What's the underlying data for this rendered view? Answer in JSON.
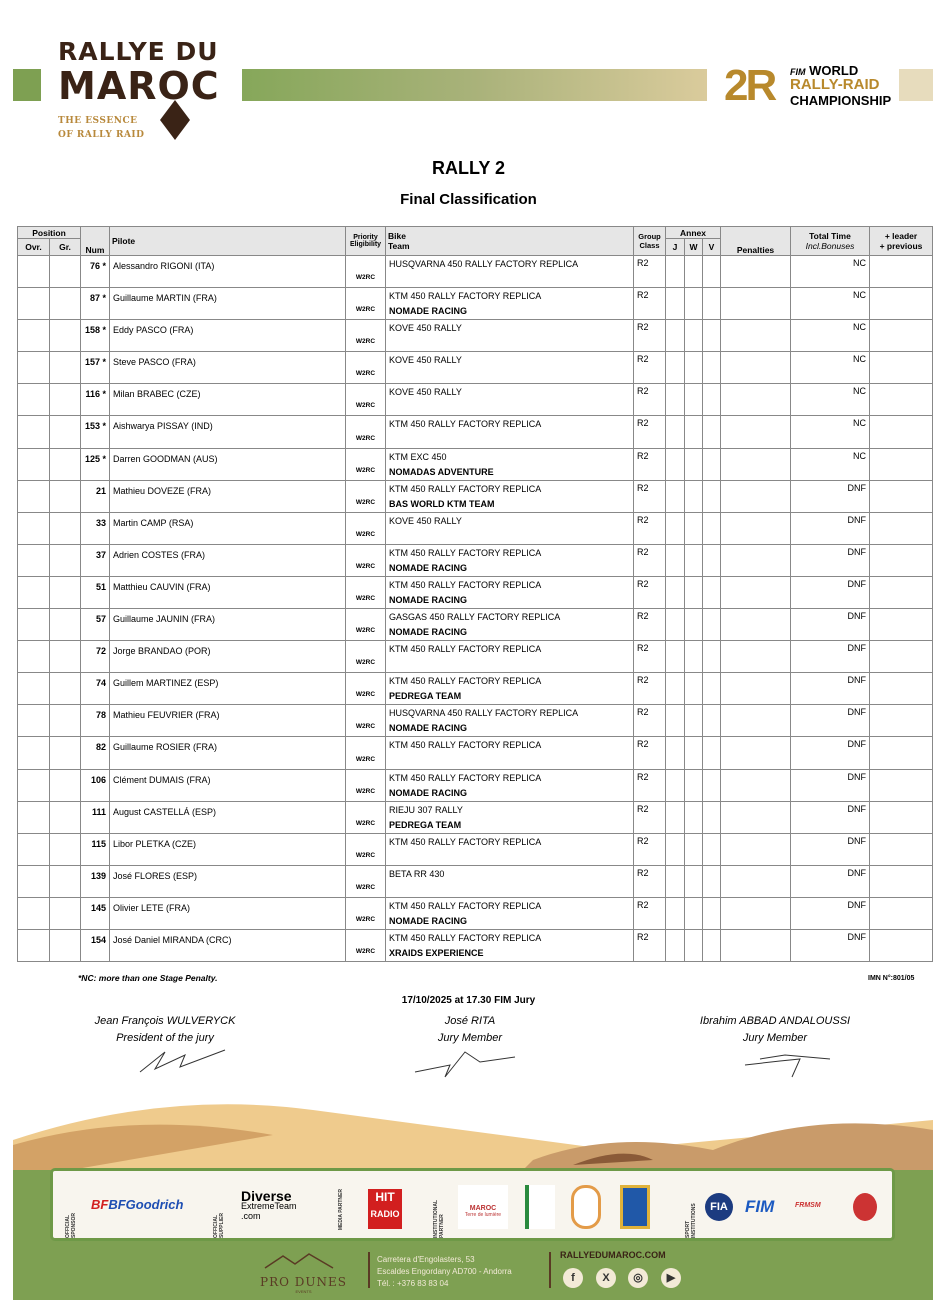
{
  "header": {
    "logo_left_line1": "RALLYE DU",
    "logo_left_line2": "MAROC",
    "logo_left_tag1": "THE ESSENCE",
    "logo_left_tag2": "OF RALLY RAID",
    "logo_right_fim": "FIM",
    "logo_right_line1": "WORLD",
    "logo_right_line2": "RALLY-RAID",
    "logo_right_line3": "CHAMPIONSHIP",
    "logo_right_mark": "2R"
  },
  "title": "RALLY 2",
  "subtitle": "Final Classification",
  "table": {
    "headers": {
      "position": "Position",
      "ovr": "Ovr.",
      "gr": "Gr.",
      "num": "Num",
      "pilote": "Pilote",
      "priority1": "Priority",
      "priority2": "Eligibility",
      "bike": "Bike",
      "team": "Team",
      "group1": "Group",
      "group2": "Class",
      "annex": "Annex",
      "j": "J",
      "w": "W",
      "v": "V",
      "penalties": "Penalties",
      "total1": "Total Time",
      "total2": "Incl.Bonuses",
      "leader1": "+ leader",
      "leader2": "+ previous"
    },
    "rows": [
      {
        "num": "76 *",
        "pilote": "Alessandro RIGONI (ITA)",
        "priority": "W2RC",
        "bike": "HUSQVARNA 450 RALLY FACTORY REPLICA",
        "team": "",
        "class": "R2",
        "total": "NC"
      },
      {
        "num": "87 *",
        "pilote": "Guillaume MARTIN (FRA)",
        "priority": "W2RC",
        "bike": "KTM 450 RALLY FACTORY REPLICA",
        "team": "NOMADE RACING",
        "class": "R2",
        "total": "NC"
      },
      {
        "num": "158 *",
        "pilote": "Eddy PASCO (FRA)",
        "priority": "W2RC",
        "bike": "KOVE 450 RALLY",
        "team": "",
        "class": "R2",
        "total": "NC"
      },
      {
        "num": "157 *",
        "pilote": "Steve PASCO (FRA)",
        "priority": "W2RC",
        "bike": "KOVE 450 RALLY",
        "team": "",
        "class": "R2",
        "total": "NC"
      },
      {
        "num": "116 *",
        "pilote": "Milan BRABEC (CZE)",
        "priority": "W2RC",
        "bike": "KOVE 450 RALLY",
        "team": "",
        "class": "R2",
        "total": "NC"
      },
      {
        "num": "153 *",
        "pilote": "Aishwarya PISSAY (IND)",
        "priority": "W2RC",
        "bike": "KTM 450 RALLY FACTORY REPLICA",
        "team": "",
        "class": "R2",
        "total": "NC"
      },
      {
        "num": "125 *",
        "pilote": "Darren GOODMAN (AUS)",
        "priority": "W2RC",
        "bike": "KTM EXC 450",
        "team": "NOMADAS ADVENTURE",
        "class": "R2",
        "total": "NC"
      },
      {
        "num": "21",
        "pilote": "Mathieu DOVEZE (FRA)",
        "priority": "W2RC",
        "bike": "KTM 450 RALLY FACTORY REPLICA",
        "team": "BAS WORLD KTM TEAM",
        "class": "R2",
        "total": "DNF"
      },
      {
        "num": "33",
        "pilote": "Martin CAMP (RSA)",
        "priority": "W2RC",
        "bike": "KOVE 450 RALLY",
        "team": "",
        "class": "R2",
        "total": "DNF"
      },
      {
        "num": "37",
        "pilote": "Adrien COSTES (FRA)",
        "priority": "W2RC",
        "bike": "KTM 450 RALLY FACTORY REPLICA",
        "team": "NOMADE RACING",
        "class": "R2",
        "total": "DNF"
      },
      {
        "num": "51",
        "pilote": "Matthieu CAUVIN (FRA)",
        "priority": "W2RC",
        "bike": "KTM 450 RALLY FACTORY REPLICA",
        "team": "NOMADE RACING",
        "class": "R2",
        "total": "DNF"
      },
      {
        "num": "57",
        "pilote": "Guillaume JAUNIN (FRA)",
        "priority": "W2RC",
        "bike": "GASGAS 450 RALLY FACTORY REPLICA",
        "team": "NOMADE RACING",
        "class": "R2",
        "total": "DNF"
      },
      {
        "num": "72",
        "pilote": "Jorge BRANDAO (POR)",
        "priority": "W2RC",
        "bike": "KTM 450 RALLY FACTORY REPLICA",
        "team": "",
        "class": "R2",
        "total": "DNF"
      },
      {
        "num": "74",
        "pilote": "Guillem MARTINEZ (ESP)",
        "priority": "W2RC",
        "bike": "KTM 450 RALLY FACTORY REPLICA",
        "team": "PEDREGA TEAM",
        "class": "R2",
        "total": "DNF"
      },
      {
        "num": "78",
        "pilote": "Mathieu FEUVRIER (FRA)",
        "priority": "W2RC",
        "bike": "HUSQVARNA 450 RALLY FACTORY REPLICA",
        "team": "NOMADE RACING",
        "class": "R2",
        "total": "DNF"
      },
      {
        "num": "82",
        "pilote": "Guillaume ROSIER (FRA)",
        "priority": "W2RC",
        "bike": "KTM 450 RALLY FACTORY REPLICA",
        "team": "",
        "class": "R2",
        "total": "DNF"
      },
      {
        "num": "106",
        "pilote": "Clément DUMAIS (FRA)",
        "priority": "W2RC",
        "bike": "KTM 450 RALLY FACTORY REPLICA",
        "team": "NOMADE RACING",
        "class": "R2",
        "total": "DNF"
      },
      {
        "num": "111",
        "pilote": "August CASTELLÁ (ESP)",
        "priority": "W2RC",
        "bike": "RIEJU 307 RALLY",
        "team": "PEDREGA TEAM",
        "class": "R2",
        "total": "DNF"
      },
      {
        "num": "115",
        "pilote": "Libor PLETKA (CZE)",
        "priority": "W2RC",
        "bike": "KTM 450 RALLY FACTORY REPLICA",
        "team": "",
        "class": "R2",
        "total": "DNF"
      },
      {
        "num": "139",
        "pilote": "José FLORES (ESP)",
        "priority": "W2RC",
        "bike": "BETA RR 430",
        "team": "",
        "class": "R2",
        "total": "DNF"
      },
      {
        "num": "145",
        "pilote": "Olivier LETE (FRA)",
        "priority": "W2RC",
        "bike": "KTM 450 RALLY FACTORY REPLICA",
        "team": "NOMADE RACING",
        "class": "R2",
        "total": "DNF"
      },
      {
        "num": "154",
        "pilote": "José Daniel MIRANDA (CRC)",
        "priority": "W2RC",
        "bike": "KTM 450 RALLY FACTORY REPLICA",
        "team": "XRAIDS EXPERIENCE",
        "class": "R2",
        "total": "DNF"
      }
    ]
  },
  "footnote": "*NC: more than one Stage Penalty.",
  "imn": "IMN N°:801/05",
  "jury": {
    "datetime": "17/10/2025 at 17.30  FIM Jury",
    "members": [
      {
        "name": "Jean François WULVERYCK",
        "role": "President of the jury"
      },
      {
        "name": "José RITA",
        "role": "Jury Member"
      },
      {
        "name": "Ibrahim ABBAD ANDALOUSSI",
        "role": "Jury Member"
      }
    ]
  },
  "sponsors": {
    "official_sponsor": "OFFICIAL SPONSOR",
    "bfgoodrich": "BFGoodrich",
    "official_supplier": "OFFICIAL SUPPLIER",
    "diverse1": "Diverse",
    "diverse2": "ExtremeTeam",
    "diverse3": ".com",
    "media_partner": "MEDIA PARTNER",
    "hit1": "HIT",
    "hit2": "RADIO",
    "institutional_partner": "INSTITUTIONAL PARTNER",
    "maroc1": "MAROC",
    "maroc2": "Terre de lumière",
    "sport_institutions": "SPORT INSTITUTIONS",
    "fia": "FIA",
    "fim": "FIM",
    "frmsm": "FRMSM"
  },
  "footer": {
    "produnes": "PRO DUNES",
    "produnes_sub": "EVENTS",
    "address1": "Carretera d'Engolasters, 53",
    "address2": "Escaldes Engordany AD700 - Andorra",
    "phone": "Tél. : +376 83 83 04",
    "website": "RALLYEDUMAROC.COM"
  },
  "colors": {
    "green": "#7ea052",
    "brown": "#3a2316",
    "gold": "#b8892c",
    "header_gray": "#e6e6e6"
  }
}
